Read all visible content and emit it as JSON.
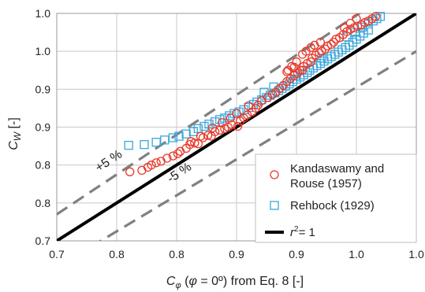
{
  "chart_data": {
    "type": "scatter",
    "xlabel": "Cφ (φ = 0º) from Eq. 8 [-]",
    "ylabel": "CW [-]",
    "xlim": [
      0.7,
      1.0
    ],
    "ylim": [
      0.7,
      1.0
    ],
    "x_ticks": [
      0.7,
      0.75,
      0.8,
      0.85,
      0.9,
      0.95,
      1.0
    ],
    "y_ticks": [
      0.7,
      0.75,
      0.8,
      0.85,
      0.9,
      0.95,
      1.0
    ],
    "x_tick_labels": [
      "0.7",
      "0.8",
      "0.8",
      "0.9",
      "0.9",
      "1.0",
      "1.0"
    ],
    "y_tick_labels": [
      "0.7",
      "0.8",
      "0.8",
      "0.9",
      "0.9",
      "1.0",
      "1.0"
    ],
    "grid": true,
    "legend_position": "bottom-right",
    "band_labels": [
      "+5 %",
      "-5 %"
    ],
    "colors": {
      "kandaswamy": "#e8392b",
      "rehbock": "#3aa7dc",
      "one_to_one": "#000000",
      "bands": "#808080"
    },
    "series": [
      {
        "name": "Kandaswamy and Rouse (1957)",
        "marker": "circle",
        "points": [
          [
            0.761,
            0.791
          ],
          [
            0.771,
            0.793
          ],
          [
            0.776,
            0.797
          ],
          [
            0.779,
            0.8
          ],
          [
            0.783,
            0.803
          ],
          [
            0.787,
            0.805
          ],
          [
            0.792,
            0.809
          ],
          [
            0.797,
            0.812
          ],
          [
            0.801,
            0.815
          ],
          [
            0.803,
            0.818
          ],
          [
            0.808,
            0.822
          ],
          [
            0.811,
            0.827
          ],
          [
            0.815,
            0.829
          ],
          [
            0.818,
            0.828
          ],
          [
            0.822,
            0.836
          ],
          [
            0.826,
            0.839
          ],
          [
            0.829,
            0.838
          ],
          [
            0.832,
            0.844
          ],
          [
            0.836,
            0.846
          ],
          [
            0.84,
            0.848
          ],
          [
            0.843,
            0.85
          ],
          [
            0.846,
            0.853
          ],
          [
            0.851,
            0.851
          ],
          [
            0.853,
            0.858
          ],
          [
            0.856,
            0.862
          ],
          [
            0.859,
            0.866
          ],
          [
            0.863,
            0.87
          ],
          [
            0.866,
            0.875
          ],
          [
            0.868,
            0.879
          ],
          [
            0.871,
            0.885
          ],
          [
            0.876,
            0.889
          ],
          [
            0.88,
            0.893
          ],
          [
            0.883,
            0.896
          ],
          [
            0.886,
            0.901
          ],
          [
            0.889,
            0.905
          ],
          [
            0.892,
            0.91
          ],
          [
            0.895,
            0.914
          ],
          [
            0.898,
            0.918
          ],
          [
            0.901,
            0.921
          ],
          [
            0.903,
            0.925
          ],
          [
            0.906,
            0.93
          ],
          [
            0.909,
            0.934
          ],
          [
            0.912,
            0.936
          ],
          [
            0.913,
            0.941
          ],
          [
            0.916,
            0.945
          ],
          [
            0.919,
            0.948
          ],
          [
            0.921,
            0.95
          ],
          [
            0.924,
            0.953
          ],
          [
            0.926,
            0.957
          ],
          [
            0.929,
            0.959
          ],
          [
            0.931,
            0.962
          ],
          [
            0.933,
            0.966
          ],
          [
            0.936,
            0.968
          ],
          [
            0.939,
            0.972
          ],
          [
            0.942,
            0.976
          ],
          [
            0.945,
            0.979
          ],
          [
            0.948,
            0.981
          ],
          [
            0.951,
            0.983
          ],
          [
            0.954,
            0.985
          ],
          [
            0.957,
            0.988
          ],
          [
            0.96,
            0.99
          ],
          [
            0.963,
            0.993
          ],
          [
            0.966,
            0.996
          ],
          [
            0.95,
            0.993
          ],
          [
            0.945,
            0.987
          ],
          [
            0.94,
            0.981
          ],
          [
            0.92,
            0.962
          ],
          [
            0.915,
            0.958
          ],
          [
            0.912,
            0.955
          ],
          [
            0.908,
            0.95
          ],
          [
            0.905,
            0.946
          ],
          [
            0.9,
            0.936
          ],
          [
            0.896,
            0.93
          ],
          [
            0.893,
            0.925
          ],
          [
            0.86,
            0.878
          ],
          [
            0.85,
            0.868
          ],
          [
            0.845,
            0.862
          ],
          [
            0.838,
            0.856
          ],
          [
            0.83,
            0.849
          ],
          [
            0.82,
            0.838
          ],
          [
            0.812,
            0.831
          ],
          [
            0.905,
            0.925
          ],
          [
            0.898,
            0.929
          ],
          [
            0.892,
            0.923
          ]
        ]
      },
      {
        "name": "Rehbock (1929)",
        "marker": "square",
        "points": [
          [
            0.76,
            0.826
          ],
          [
            0.773,
            0.827
          ],
          [
            0.783,
            0.83
          ],
          [
            0.79,
            0.833
          ],
          [
            0.797,
            0.836
          ],
          [
            0.802,
            0.838
          ],
          [
            0.808,
            0.841
          ],
          [
            0.814,
            0.844
          ],
          [
            0.818,
            0.848
          ],
          [
            0.823,
            0.851
          ],
          [
            0.827,
            0.854
          ],
          [
            0.832,
            0.857
          ],
          [
            0.836,
            0.86
          ],
          [
            0.84,
            0.862
          ],
          [
            0.844,
            0.865
          ],
          [
            0.848,
            0.868
          ],
          [
            0.852,
            0.87
          ],
          [
            0.856,
            0.873
          ],
          [
            0.86,
            0.876
          ],
          [
            0.864,
            0.88
          ],
          [
            0.867,
            0.883
          ],
          [
            0.871,
            0.886
          ],
          [
            0.875,
            0.889
          ],
          [
            0.878,
            0.892
          ],
          [
            0.882,
            0.895
          ],
          [
            0.885,
            0.898
          ],
          [
            0.888,
            0.901
          ],
          [
            0.891,
            0.904
          ],
          [
            0.894,
            0.907
          ],
          [
            0.897,
            0.91
          ],
          [
            0.9,
            0.913
          ],
          [
            0.903,
            0.916
          ],
          [
            0.906,
            0.919
          ],
          [
            0.909,
            0.922
          ],
          [
            0.911,
            0.925
          ],
          [
            0.914,
            0.928
          ],
          [
            0.917,
            0.931
          ],
          [
            0.92,
            0.934
          ],
          [
            0.923,
            0.937
          ],
          [
            0.926,
            0.94
          ],
          [
            0.929,
            0.943
          ],
          [
            0.932,
            0.946
          ],
          [
            0.935,
            0.949
          ],
          [
            0.938,
            0.952
          ],
          [
            0.941,
            0.955
          ],
          [
            0.944,
            0.958
          ],
          [
            0.947,
            0.962
          ],
          [
            0.95,
            0.966
          ],
          [
            0.953,
            0.97
          ],
          [
            0.956,
            0.974
          ],
          [
            0.96,
            0.978
          ],
          [
            0.964,
            0.99
          ],
          [
            0.967,
            0.993
          ],
          [
            0.97,
            0.996
          ],
          [
            0.96,
            0.986
          ],
          [
            0.955,
            0.982
          ],
          [
            0.949,
            0.975
          ],
          [
            0.942,
            0.969
          ],
          [
            0.921,
            0.941
          ],
          [
            0.899,
            0.918
          ],
          [
            0.881,
            0.903
          ],
          [
            0.873,
            0.896
          ]
        ]
      },
      {
        "name": "r² = 1",
        "marker": "line",
        "line": [
          [
            0.7,
            0.7
          ],
          [
            1.0,
            1.0
          ]
        ]
      }
    ],
    "bands": [
      {
        "label": "+5 %",
        "factor": 1.05
      },
      {
        "label": "-5 %",
        "factor": 0.95
      }
    ]
  },
  "legend": {
    "items": [
      {
        "label_lines": [
          "Kandaswamy and",
          "Rouse (1957)"
        ]
      },
      {
        "label_lines": [
          "Rehbock (1929)"
        ]
      },
      {
        "label_lines": [
          "r",
          "2",
          "= 1"
        ]
      }
    ]
  },
  "axes_text": {
    "ylabel_main": "C",
    "ylabel_sub": "W",
    "ylabel_rest": " [-]",
    "xlabel_main": "C",
    "xlabel_sub": "φ",
    "xlabel_rest1": " (",
    "xlabel_phi": "φ",
    "xlabel_rest2": " = 0º) from Eq. 8 [-]"
  }
}
